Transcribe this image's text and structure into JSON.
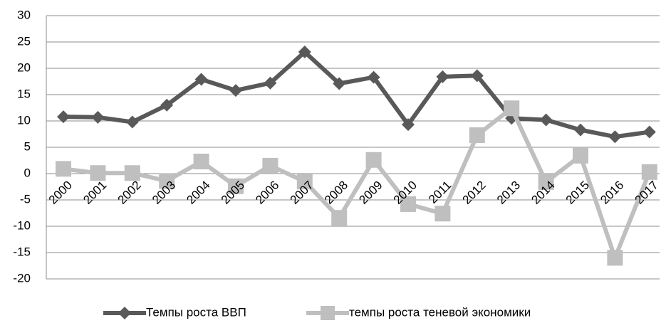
{
  "chart_data": {
    "type": "line",
    "categories": [
      "2000",
      "2001",
      "2002",
      "2003",
      "2004",
      "2005",
      "2006",
      "2007",
      "2008",
      "2009",
      "2010",
      "2011",
      "2012",
      "2013",
      "2014",
      "2015",
      "2016",
      "2017"
    ],
    "series": [
      {
        "name": "Темпы роста ВВП",
        "color": "#595959",
        "marker": "diamond",
        "values": [
          10.8,
          10.7,
          9.8,
          13,
          17.9,
          15.8,
          17.2,
          23.1,
          17.1,
          18.3,
          9.3,
          18.4,
          18.6,
          10.5,
          10.2,
          8.3,
          7,
          7.9
        ]
      },
      {
        "name": "темпы роста теневой экономики",
        "color": "#bfbfbf",
        "marker": "square",
        "values": [
          0.9,
          0.1,
          0.1,
          -1.4,
          2.3,
          -2.4,
          1.5,
          -1.5,
          -8.4,
          2.6,
          -5.8,
          -7.6,
          7.3,
          12.4,
          -1.6,
          3.4,
          -16,
          0.3
        ]
      }
    ],
    "ylim": [
      -20,
      30
    ],
    "yticks": [
      -20,
      -15,
      -10,
      -5,
      0,
      5,
      10,
      15,
      20,
      25,
      30
    ],
    "grid": true
  }
}
